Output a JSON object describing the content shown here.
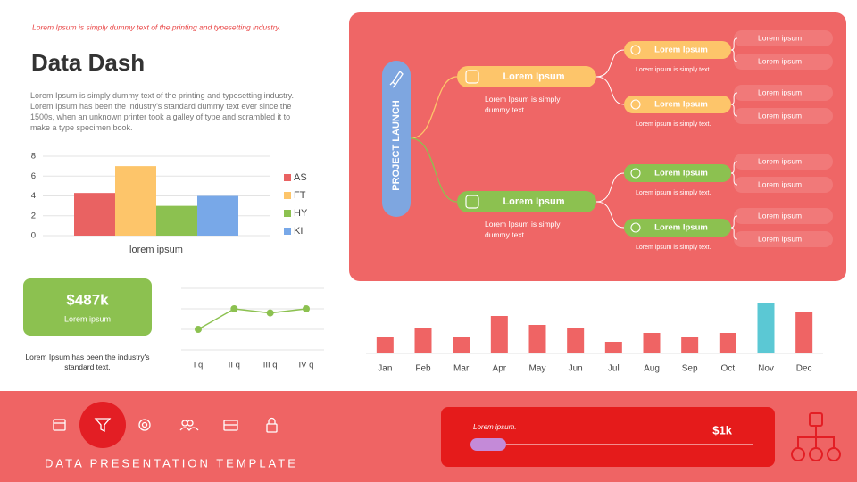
{
  "header": {
    "tagline": "Lorem Ipsum is simply dummy text of the printing and typesetting industry.",
    "title": "Data Dash",
    "body": "Lorem Ipsum is simply dummy text of the printing and typesetting industry. Lorem Ipsum has been the industry's standard dummy text ever since the 1500s, when an unknown printer took a galley of type and scrambled it to make a type specimen book."
  },
  "chart_data": [
    {
      "type": "bar",
      "categories": [
        "lorem ipsum"
      ],
      "series": [
        {
          "name": "AS",
          "color": "#e96262",
          "values": [
            4.3
          ]
        },
        {
          "name": "FT",
          "color": "#fdc56a",
          "values": [
            7
          ]
        },
        {
          "name": "HY",
          "color": "#8cc150",
          "values": [
            3
          ]
        },
        {
          "name": "KI",
          "color": "#78a8e8",
          "values": [
            4
          ]
        }
      ],
      "ylim": [
        0,
        8
      ],
      "yticks": [
        0,
        2,
        4,
        6,
        8
      ],
      "grid": true,
      "legend": "right"
    },
    {
      "type": "line",
      "categories": [
        "I q",
        "II q",
        "III q",
        "IV q"
      ],
      "values": [
        1,
        2,
        1.8,
        2
      ],
      "color": "#8cc150",
      "ylim": [
        0,
        3
      ],
      "grid": true
    },
    {
      "type": "bar",
      "categories": [
        "Jan",
        "Feb",
        "Mar",
        "Apr",
        "May",
        "Jun",
        "Jul",
        "Aug",
        "Sep",
        "Oct",
        "Nov",
        "Dec"
      ],
      "values": [
        18,
        28,
        18,
        42,
        32,
        28,
        13,
        23,
        18,
        23,
        56,
        47
      ],
      "colors": [
        "#ef6464",
        "#ef6464",
        "#ef6464",
        "#ef6464",
        "#ef6464",
        "#ef6464",
        "#ef6464",
        "#ef6464",
        "#ef6464",
        "#ef6464",
        "#5bc8d4",
        "#ef6464"
      ],
      "ylim": [
        0,
        60
      ]
    }
  ],
  "kpi": {
    "value": "$487k",
    "label": "Lorem ipsum",
    "note": "Lorem Ipsum has been the industry's standard text."
  },
  "mindmap": {
    "root": "PROJECT LAUNCH",
    "branches": [
      {
        "label": "Lorem Ipsum",
        "text": "Lorem Ipsum is simply dummy text.",
        "children": [
          {
            "label": "Lorem Ipsum",
            "text": "Lorem ipsum is simply text.",
            "leaves": [
              "Lorem ipsum",
              "Lorem ipsum"
            ]
          },
          {
            "label": "Lorem Ipsum",
            "text": "Lorem ipsum is simply text.",
            "leaves": [
              "Lorem ipsum",
              "Lorem ipsum"
            ]
          }
        ]
      },
      {
        "label": "Lorem Ipsum",
        "text": "Lorem Ipsum is simply dummy text.",
        "children": [
          {
            "label": "Lorem Ipsum",
            "text": "Lorem ipsum is simply text.",
            "leaves": [
              "Lorem ipsum",
              "Lorem ipsum"
            ]
          },
          {
            "label": "Lorem Ipsum",
            "text": "Lorem ipsum is simply text.",
            "leaves": [
              "Lorem ipsum",
              "Lorem ipsum"
            ]
          }
        ]
      }
    ]
  },
  "footer": {
    "title": "DATA PRESENTATION TEMPLATE",
    "slider_label": "Lorem ipsum.",
    "slider_value": "$1k"
  }
}
